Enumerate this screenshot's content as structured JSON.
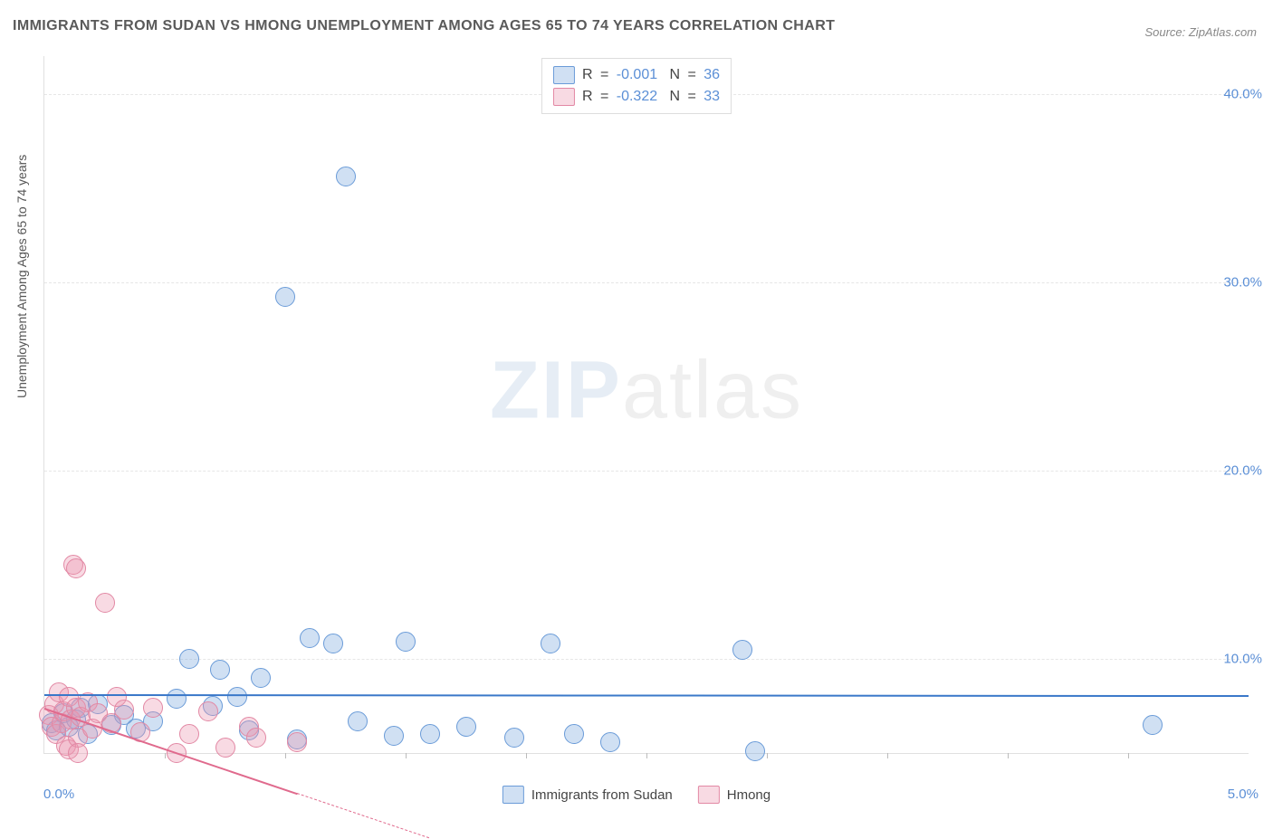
{
  "title": "IMMIGRANTS FROM SUDAN VS HMONG UNEMPLOYMENT AMONG AGES 65 TO 74 YEARS CORRELATION CHART",
  "source_label": "Source: ZipAtlas.com",
  "watermark": {
    "part1": "ZIP",
    "part2": "atlas"
  },
  "chart": {
    "type": "scatter",
    "ylabel": "Unemployment Among Ages 65 to 74 years",
    "xlim": [
      0.0,
      5.0
    ],
    "ylim": [
      5.0,
      42.0
    ],
    "ytick_labels": [
      "10.0%",
      "20.0%",
      "30.0%",
      "40.0%"
    ],
    "ytick_values": [
      10,
      20,
      30,
      40
    ],
    "x_left_label": "0.0%",
    "x_right_label": "5.0%",
    "x_minor_ticks": [
      0.5,
      1.0,
      1.5,
      2.0,
      2.5,
      3.0,
      3.5,
      4.0,
      4.5
    ],
    "grid_color": "#e6e6e6",
    "background_color": "#ffffff",
    "marker_radius": 10,
    "marker_stroke": 1.5,
    "series": [
      {
        "name": "Immigrants from Sudan",
        "fill": "rgba(120,165,220,0.35)",
        "stroke": "#6a9bd8",
        "R": "-0.001",
        "N": "36",
        "trend": {
          "y_start": 8.1,
          "y_end": 8.05,
          "color": "#3a78c9",
          "width": 2.5,
          "dash": false
        },
        "points": [
          [
            0.03,
            6.6
          ],
          [
            0.05,
            6.2
          ],
          [
            0.08,
            7.1
          ],
          [
            0.1,
            6.4
          ],
          [
            0.13,
            6.8
          ],
          [
            0.15,
            7.4
          ],
          [
            0.18,
            6.0
          ],
          [
            0.22,
            7.6
          ],
          [
            0.28,
            6.5
          ],
          [
            0.33,
            7.0
          ],
          [
            0.38,
            6.3
          ],
          [
            0.45,
            6.7
          ],
          [
            0.55,
            7.9
          ],
          [
            0.6,
            10.0
          ],
          [
            0.7,
            7.5
          ],
          [
            0.73,
            9.4
          ],
          [
            0.8,
            8.0
          ],
          [
            0.85,
            6.2
          ],
          [
            0.9,
            9.0
          ],
          [
            1.0,
            29.2
          ],
          [
            1.05,
            5.7
          ],
          [
            1.1,
            11.1
          ],
          [
            1.2,
            10.8
          ],
          [
            1.25,
            35.6
          ],
          [
            1.3,
            6.7
          ],
          [
            1.45,
            5.9
          ],
          [
            1.5,
            10.9
          ],
          [
            1.6,
            6.0
          ],
          [
            1.75,
            6.4
          ],
          [
            1.95,
            5.8
          ],
          [
            2.1,
            10.8
          ],
          [
            2.2,
            6.0
          ],
          [
            2.35,
            5.6
          ],
          [
            2.9,
            10.5
          ],
          [
            2.95,
            5.1
          ],
          [
            4.6,
            6.5
          ]
        ]
      },
      {
        "name": "Hmong",
        "fill": "rgba(235,150,175,0.35)",
        "stroke": "#e288a4",
        "R": "-0.322",
        "N": "33",
        "trend": {
          "y_start": 7.4,
          "y_end": 0.5,
          "x_end": 1.6,
          "color": "#e06a8d",
          "width": 2,
          "dash_after": 1.05
        },
        "points": [
          [
            0.02,
            7.0
          ],
          [
            0.03,
            6.4
          ],
          [
            0.04,
            7.6
          ],
          [
            0.05,
            6.0
          ],
          [
            0.06,
            8.2
          ],
          [
            0.07,
            6.6
          ],
          [
            0.08,
            7.2
          ],
          [
            0.09,
            5.4
          ],
          [
            0.1,
            5.2
          ],
          [
            0.1,
            8.0
          ],
          [
            0.11,
            6.8
          ],
          [
            0.12,
            15.0
          ],
          [
            0.13,
            14.8
          ],
          [
            0.13,
            7.4
          ],
          [
            0.14,
            5.8
          ],
          [
            0.14,
            5.0
          ],
          [
            0.15,
            6.9
          ],
          [
            0.18,
            7.7
          ],
          [
            0.2,
            6.3
          ],
          [
            0.22,
            7.1
          ],
          [
            0.25,
            13.0
          ],
          [
            0.28,
            6.6
          ],
          [
            0.3,
            8.0
          ],
          [
            0.33,
            7.3
          ],
          [
            0.4,
            6.1
          ],
          [
            0.45,
            7.4
          ],
          [
            0.55,
            5.0
          ],
          [
            0.6,
            6.0
          ],
          [
            0.68,
            7.2
          ],
          [
            0.75,
            5.3
          ],
          [
            0.85,
            6.4
          ],
          [
            0.88,
            5.8
          ],
          [
            1.05,
            5.6
          ]
        ]
      }
    ]
  },
  "legend_top_labels": {
    "R": "R",
    "eq": "=",
    "N": "N"
  },
  "legend_bottom": [
    "Immigrants from Sudan",
    "Hmong"
  ]
}
